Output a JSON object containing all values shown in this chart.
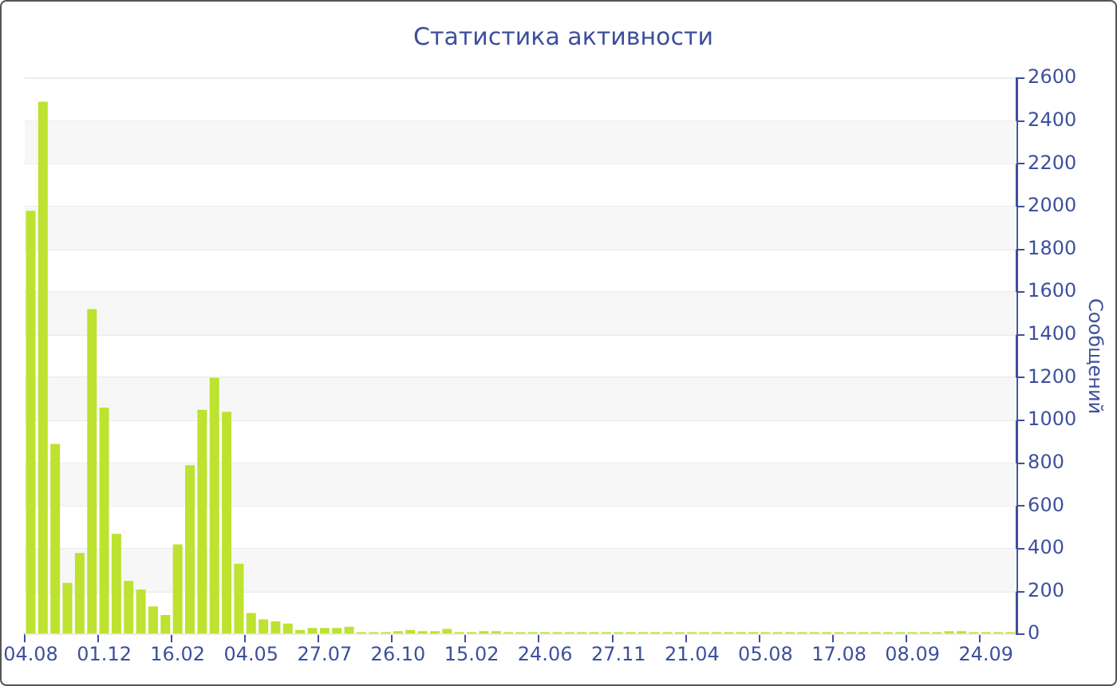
{
  "chart_data": {
    "type": "bar",
    "title": "Статистика активности",
    "ylabel": "Сообщений",
    "categories": [
      "04.08",
      null,
      null,
      null,
      null,
      null,
      "01.12",
      null,
      null,
      null,
      null,
      null,
      "16.02",
      null,
      null,
      null,
      null,
      null,
      "04.05",
      null,
      null,
      null,
      null,
      null,
      "27.07",
      null,
      null,
      null,
      null,
      null,
      "26.10",
      null,
      null,
      null,
      null,
      null,
      "15.02",
      null,
      null,
      null,
      null,
      null,
      "24.06",
      null,
      null,
      null,
      null,
      null,
      "27.11",
      null,
      null,
      null,
      null,
      null,
      "21.04",
      null,
      null,
      null,
      null,
      null,
      "05.08",
      null,
      null,
      null,
      null,
      null,
      "17.08",
      null,
      null,
      null,
      null,
      null,
      "08.09",
      null,
      null,
      null,
      null,
      null,
      "24.09",
      null,
      null
    ],
    "values": [
      1980,
      2490,
      890,
      240,
      380,
      1520,
      1060,
      470,
      250,
      210,
      130,
      90,
      420,
      790,
      1050,
      1200,
      1040,
      330,
      100,
      70,
      60,
      50,
      20,
      30,
      30,
      30,
      35,
      10,
      10,
      10,
      15,
      20,
      15,
      15,
      25,
      10,
      10,
      15,
      15,
      10,
      10,
      10,
      10,
      10,
      10,
      10,
      10,
      10,
      10,
      10,
      10,
      10,
      10,
      10,
      10,
      10,
      10,
      10,
      10,
      10,
      10,
      10,
      10,
      10,
      10,
      10,
      10,
      10,
      10,
      10,
      10,
      10,
      10,
      10,
      10,
      15,
      15,
      10,
      10,
      10,
      10
    ],
    "color": "#bde22f",
    "ylim": [
      0,
      2600
    ],
    "yticks": [
      0,
      200,
      400,
      600,
      800,
      1000,
      1200,
      1400,
      1600,
      1800,
      2000,
      2200,
      2400,
      2600
    ],
    "grid": "y"
  }
}
